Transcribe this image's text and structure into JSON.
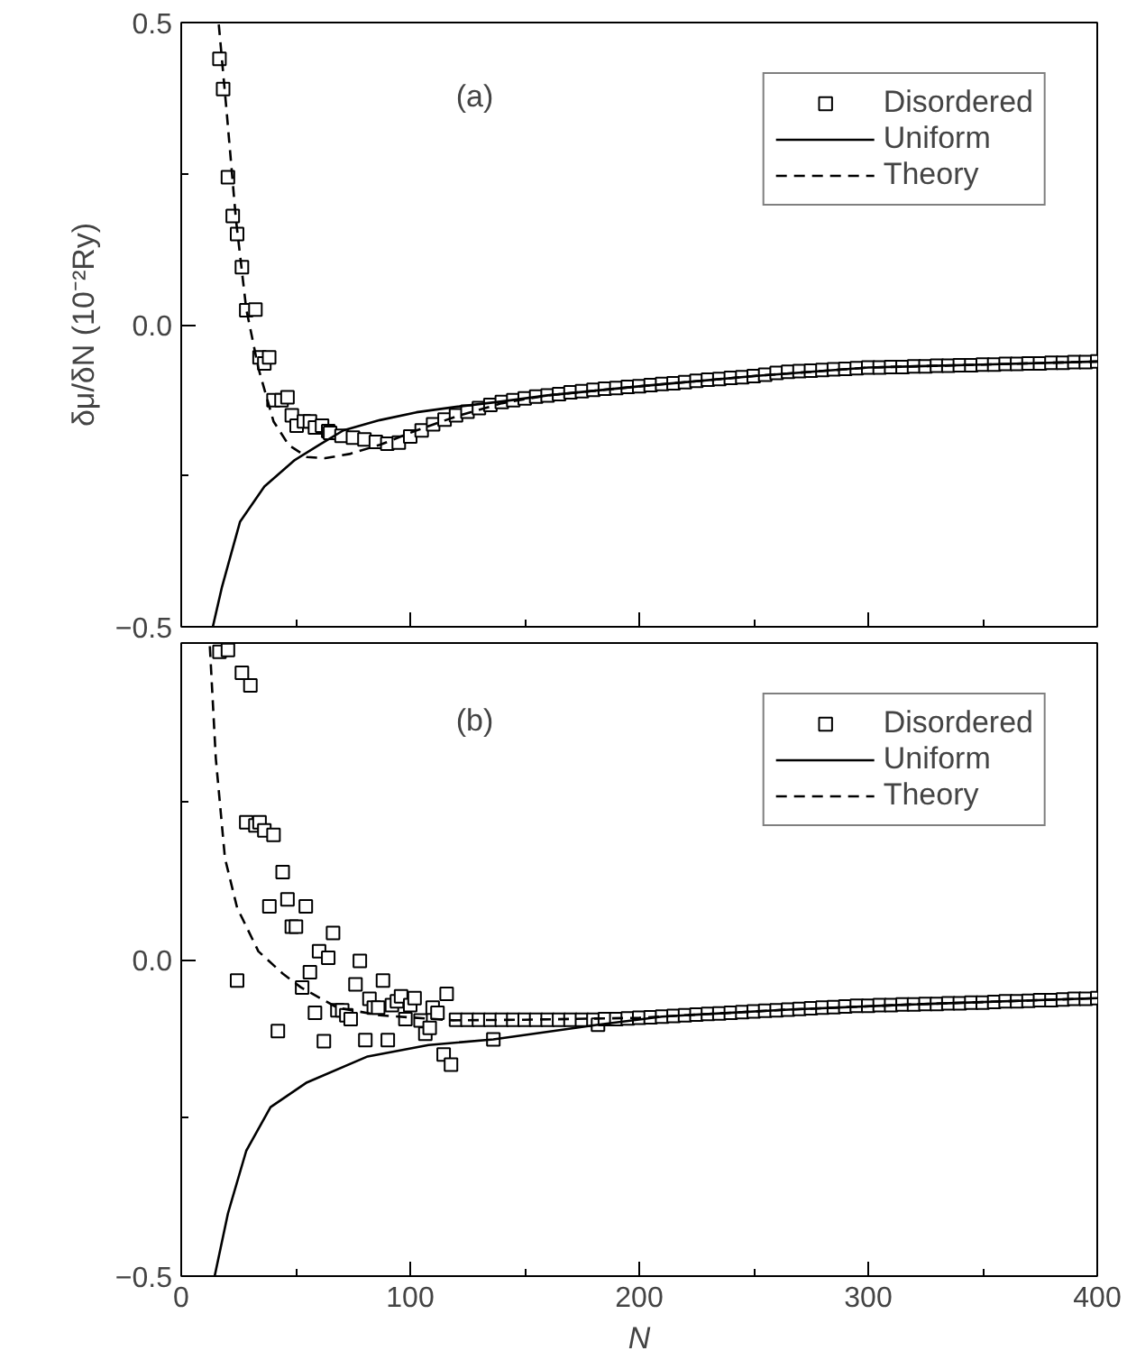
{
  "chart_data": [
    {
      "type": "scatter",
      "ylabel": "δμ/δN (10⁻²Ry)",
      "annotations": [
        "(a)"
      ],
      "legend": "top right",
      "tick_labels": "y",
      "grid": false,
      "xlim": [
        0,
        400
      ],
      "xticks": [
        {
          "value": 0,
          "label": null
        },
        {
          "value": 100,
          "label": null
        },
        {
          "value": 200,
          "label": null
        },
        {
          "value": 300,
          "label": null
        },
        {
          "value": 400,
          "label": null
        }
      ],
      "ylim": [
        -0.5,
        0.5
      ],
      "yticks": [
        {
          "value": -0.5,
          "label": "−0.5"
        },
        {
          "value": 0,
          "label": "0.0"
        },
        {
          "value": 0.5,
          "label": "0.5"
        }
      ],
      "series": [
        {
          "name": "Disordered",
          "marker": "square",
          "color": "#000000",
          "x": [
            16.7,
            18.3,
            20.4,
            22.5,
            24.4,
            26.5,
            28.4,
            32.4,
            34.2,
            36.3,
            38.4,
            40.3,
            43.8,
            46.4,
            48.3,
            50.4,
            53.6,
            56.2,
            58.4,
            61.5,
            64.2,
            65,
            70,
            75,
            80,
            85,
            90,
            95,
            100,
            105,
            110,
            115,
            120,
            125,
            130,
            135,
            140,
            145,
            150,
            155,
            160,
            165,
            170,
            175,
            180,
            185,
            190,
            195,
            200,
            205,
            210,
            215,
            220,
            225,
            230,
            235,
            240,
            245,
            250,
            255,
            260,
            265,
            270,
            275,
            280,
            285,
            290,
            295,
            300,
            305,
            310,
            315,
            320,
            325,
            330,
            335,
            340,
            345,
            350,
            355,
            360,
            365,
            370,
            375,
            380,
            385,
            390,
            395,
            400
          ],
          "values": [
            0.44,
            0.39,
            0.244,
            0.18,
            0.15,
            0.095,
            0.024,
            0.025,
            -0.054,
            -0.064,
            -0.054,
            -0.125,
            -0.125,
            -0.12,
            -0.15,
            -0.167,
            -0.16,
            -0.16,
            -0.17,
            -0.167,
            -0.176,
            -0.179,
            -0.184,
            -0.187,
            -0.19,
            -0.194,
            -0.197,
            -0.195,
            -0.185,
            -0.175,
            -0.165,
            -0.157,
            -0.15,
            -0.144,
            -0.138,
            -0.133,
            -0.128,
            -0.125,
            -0.122,
            -0.119,
            -0.117,
            -0.115,
            -0.112,
            -0.11,
            -0.108,
            -0.106,
            -0.105,
            -0.103,
            -0.102,
            -0.1,
            -0.098,
            -0.097,
            -0.095,
            -0.093,
            -0.091,
            -0.09,
            -0.088,
            -0.087,
            -0.085,
            -0.083,
            -0.08,
            -0.078,
            -0.077,
            -0.076,
            -0.075,
            -0.074,
            -0.073,
            -0.072,
            -0.071,
            -0.071,
            -0.07,
            -0.07,
            -0.069,
            -0.069,
            -0.068,
            -0.068,
            -0.067,
            -0.067,
            -0.066,
            -0.066,
            -0.065,
            -0.065,
            -0.064,
            -0.064,
            -0.063,
            -0.063,
            -0.062,
            -0.062,
            -0.061
          ]
        },
        {
          "name": "Uniform",
          "type": "line",
          "line_style": "solid",
          "marker": "none",
          "color": "#000000",
          "x": [
            13.8,
            17.8,
            25.7,
            36.3,
            49.6,
            60.2,
            70.8,
            86.7,
            102.7,
            120,
            140,
            160,
            200,
            250,
            300,
            350,
            400
          ],
          "values": [
            -0.5,
            -0.434,
            -0.326,
            -0.268,
            -0.224,
            -0.199,
            -0.175,
            -0.158,
            -0.145,
            -0.136,
            -0.127,
            -0.117,
            -0.102,
            -0.085,
            -0.071,
            -0.066,
            -0.061
          ]
        },
        {
          "name": "Theory",
          "type": "line",
          "line_style": "dashed",
          "marker": "none",
          "color": "#000000",
          "x": [
            16.4,
            19.9,
            23.9,
            28.4,
            33.7,
            40.3,
            46.9,
            54.9,
            62.9,
            73.5,
            86.7,
            102.7,
            120,
            140,
            160,
            200,
            250,
            300,
            350,
            400
          ],
          "values": [
            0.497,
            0.35,
            0.174,
            0.026,
            -0.072,
            -0.16,
            -0.199,
            -0.219,
            -0.221,
            -0.214,
            -0.199,
            -0.175,
            -0.152,
            -0.13,
            -0.117,
            -0.102,
            -0.085,
            -0.071,
            -0.066,
            -0.061
          ]
        }
      ]
    },
    {
      "type": "scatter",
      "xlabel": "N",
      "annotations": [
        "(b)"
      ],
      "legend": "top right",
      "grid": false,
      "xlim": [
        0,
        400
      ],
      "xticks": [
        0,
        100,
        200,
        300,
        400
      ],
      "ylim": [
        -0.5,
        0.5
      ],
      "yticks": [
        {
          "value": -0.5,
          "label": "−0.5"
        },
        {
          "value": 0,
          "label": "0.0"
        },
        {
          "value": 0.5,
          "label": null
        }
      ],
      "series": [
        {
          "name": "Disordered",
          "marker": "square",
          "color": "#000000",
          "x": [
            16.7,
            20.4,
            26.5,
            30.2,
            24.4,
            28.4,
            32.4,
            34.2,
            36.3,
            40.3,
            44.3,
            38.5,
            46.4,
            48.3,
            50.1,
            54.4,
            42.2,
            52.8,
            56.2,
            58.4,
            60.2,
            64.2,
            62.3,
            66.3,
            68.2,
            70.3,
            72.1,
            74,
            76.1,
            78,
            80.4,
            82.2,
            84.1,
            86,
            88.1,
            90.2,
            92,
            94.2,
            96,
            97.9,
            100,
            101.9,
            104.5,
            106.6,
            108.5,
            109.8,
            111.9,
            114.6,
            115.9,
            117.8,
            120,
            125,
            130,
            135,
            136.3,
            140,
            145,
            150,
            155,
            160,
            165,
            170,
            175,
            180,
            182,
            185,
            190,
            195,
            200,
            205,
            210,
            215,
            220,
            225,
            230,
            235,
            240,
            245,
            250,
            255,
            260,
            265,
            270,
            275,
            280,
            285,
            290,
            295,
            300,
            305,
            310,
            315,
            320,
            325,
            330,
            335,
            340,
            345,
            350,
            355,
            360,
            365,
            370,
            375,
            380,
            385,
            390,
            395,
            400
          ],
          "values": [
            0.486,
            0.489,
            0.453,
            0.433,
            -0.033,
            0.217,
            0.212,
            0.217,
            0.204,
            0.197,
            0.138,
            0.084,
            0.095,
            0.052,
            0.052,
            0.084,
            -0.113,
            -0.044,
            -0.02,
            -0.084,
            0.013,
            0.003,
            -0.129,
            0.042,
            -0.08,
            -0.08,
            -0.088,
            -0.094,
            -0.039,
            -0.002,
            -0.127,
            -0.062,
            -0.076,
            -0.076,
            -0.033,
            -0.127,
            -0.072,
            -0.066,
            -0.058,
            -0.094,
            -0.072,
            -0.061,
            -0.096,
            -0.117,
            -0.108,
            -0.076,
            -0.084,
            -0.15,
            -0.054,
            -0.166,
            -0.095,
            -0.095,
            -0.095,
            -0.095,
            -0.126,
            -0.095,
            -0.095,
            -0.095,
            -0.095,
            -0.095,
            -0.095,
            -0.095,
            -0.095,
            -0.095,
            -0.103,
            -0.094,
            -0.094,
            -0.093,
            -0.092,
            -0.091,
            -0.09,
            -0.089,
            -0.088,
            -0.087,
            -0.086,
            -0.085,
            -0.084,
            -0.083,
            -0.082,
            -0.081,
            -0.08,
            -0.079,
            -0.078,
            -0.077,
            -0.076,
            -0.075,
            -0.074,
            -0.073,
            -0.073,
            -0.072,
            -0.072,
            -0.071,
            -0.071,
            -0.07,
            -0.07,
            -0.069,
            -0.069,
            -0.068,
            -0.068,
            -0.067,
            -0.066,
            -0.066,
            -0.065,
            -0.064,
            -0.064,
            -0.063,
            -0.062,
            -0.062,
            -0.061
          ]
        },
        {
          "name": "Uniform",
          "type": "line",
          "line_style": "solid",
          "marker": "none",
          "color": "#000000",
          "x": [
            14.6,
            20.4,
            28.4,
            39,
            54.9,
            81.4,
            108,
            136.3,
            182,
            210,
            265,
            318,
            400
          ],
          "values": [
            -0.5,
            -0.401,
            -0.302,
            -0.233,
            -0.194,
            -0.153,
            -0.135,
            -0.126,
            -0.103,
            -0.09,
            -0.079,
            -0.071,
            -0.061
          ]
        },
        {
          "name": "Theory",
          "type": "line",
          "line_style": "dashed",
          "marker": "none",
          "color": "#000000",
          "x": [
            12.5,
            15.1,
            19.1,
            24.4,
            33.7,
            44.3,
            52.3,
            68.2,
            86.7,
            118.6,
            150,
            200,
            265,
            318,
            400
          ],
          "values": [
            0.495,
            0.318,
            0.16,
            0.082,
            0.013,
            -0.022,
            -0.044,
            -0.076,
            -0.088,
            -0.096,
            -0.095,
            -0.092,
            -0.079,
            -0.071,
            -0.061
          ]
        }
      ]
    }
  ]
}
